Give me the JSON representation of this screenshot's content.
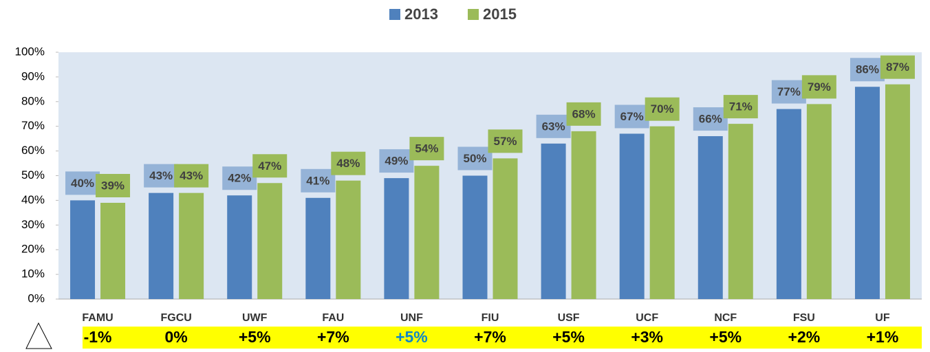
{
  "chart_data": {
    "type": "bar",
    "categories": [
      "FAMU",
      "FGCU",
      "UWF",
      "FAU",
      "UNF",
      "FIU",
      "USF",
      "UCF",
      "NCF",
      "FSU",
      "UF"
    ],
    "series": [
      {
        "name": "2013",
        "color": "#4f81bd",
        "label_color": "#95b3d7",
        "values": [
          40,
          43,
          42,
          41,
          49,
          50,
          63,
          67,
          66,
          77,
          86
        ],
        "value_labels": [
          "40%",
          "43%",
          "42%",
          "41%",
          "49%",
          "50%",
          "63%",
          "67%",
          "66%",
          "77%",
          "86%"
        ]
      },
      {
        "name": "2015",
        "color": "#9bbb59",
        "label_color": "#9bbb59",
        "values": [
          39,
          43,
          47,
          48,
          54,
          57,
          68,
          70,
          71,
          79,
          87
        ],
        "value_labels": [
          "39%",
          "43%",
          "47%",
          "48%",
          "54%",
          "57%",
          "68%",
          "70%",
          "71%",
          "79%",
          "87%"
        ]
      }
    ],
    "ylim": [
      0,
      100
    ],
    "yticks": [
      {
        "value": 0,
        "label": "0%"
      },
      {
        "value": 10,
        "label": "10%"
      },
      {
        "value": 20,
        "label": "20%"
      },
      {
        "value": 30,
        "label": "30%"
      },
      {
        "value": 40,
        "label": "40%"
      },
      {
        "value": 50,
        "label": "50%"
      },
      {
        "value": 60,
        "label": "60%"
      },
      {
        "value": 70,
        "label": "70%"
      },
      {
        "value": 80,
        "label": "80%"
      },
      {
        "value": 90,
        "label": "90%"
      },
      {
        "value": 100,
        "label": "100%"
      }
    ],
    "legend": "top",
    "plot_background": "#dce6f2",
    "change_labels": [
      "-1%",
      "0%",
      "+5%",
      "+7%",
      "+5%",
      "+7%",
      "+5%",
      "+3%",
      "+5%",
      "+2%",
      "+1%"
    ],
    "change_colors": [
      "#000000",
      "#000000",
      "#000000",
      "#000000",
      "#0e86c9",
      "#000000",
      "#000000",
      "#000000",
      "#000000",
      "#000000",
      "#000000"
    ],
    "change_background": "#ffff00"
  }
}
